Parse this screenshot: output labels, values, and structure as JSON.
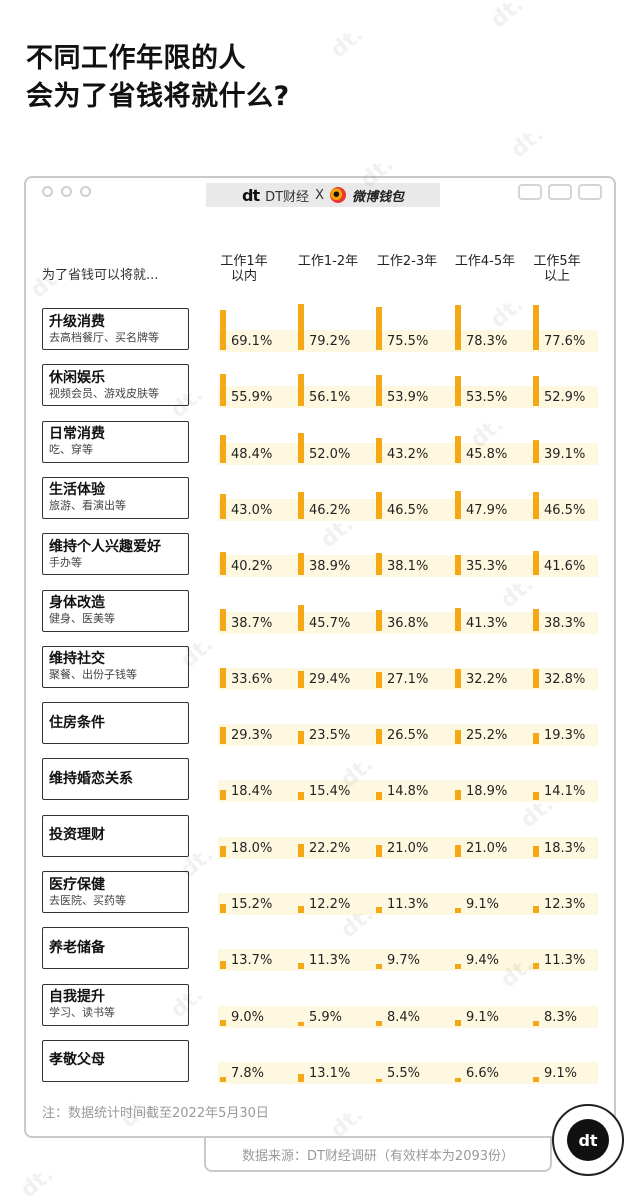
{
  "title_line1": "不同工作年限的人",
  "title_line2": "会为了省钱将就什么?",
  "brand": {
    "dt_mark": "dt",
    "dt_name": "DT财经",
    "cross": "X",
    "partner": "微博钱包"
  },
  "chart_data": {
    "type": "bar",
    "row_header": "为了省钱可以将就...",
    "series": [
      {
        "name": "工作1年以内",
        "values": [
          69.1,
          55.9,
          48.4,
          43.0,
          40.2,
          38.7,
          33.6,
          29.3,
          18.4,
          18.0,
          15.2,
          13.7,
          9.0,
          7.8
        ]
      },
      {
        "name": "工作1-2年",
        "values": [
          79.2,
          56.1,
          52.0,
          46.2,
          38.9,
          45.7,
          29.4,
          23.5,
          15.4,
          22.2,
          12.2,
          11.3,
          5.9,
          13.1
        ]
      },
      {
        "name": "工作2-3年",
        "values": [
          75.5,
          53.9,
          43.2,
          46.5,
          38.1,
          36.8,
          27.1,
          26.5,
          14.8,
          21.0,
          11.3,
          9.7,
          8.4,
          5.5
        ]
      },
      {
        "name": "工作4-5年",
        "values": [
          78.3,
          53.5,
          45.8,
          47.9,
          35.3,
          41.3,
          32.2,
          25.2,
          18.9,
          21.0,
          9.1,
          9.4,
          9.1,
          6.6
        ]
      },
      {
        "name": "工作5年以上",
        "values": [
          77.6,
          52.9,
          39.1,
          46.5,
          41.6,
          38.3,
          32.8,
          19.3,
          14.1,
          18.3,
          12.3,
          11.3,
          8.3,
          9.1
        ]
      }
    ],
    "column_headers": [
      [
        "工作1年",
        "以内"
      ],
      [
        "工作1-2年",
        ""
      ],
      [
        "工作2-3年",
        ""
      ],
      [
        "工作4-5年",
        ""
      ],
      [
        "工作5年",
        "以上"
      ]
    ],
    "categories": [
      {
        "name": "升级消费",
        "sub": "去高档餐厅、买名牌等"
      },
      {
        "name": "休闲娱乐",
        "sub": "视频会员、游戏皮肤等"
      },
      {
        "name": "日常消费",
        "sub": "吃、穿等"
      },
      {
        "name": "生活体验",
        "sub": "旅游、看演出等"
      },
      {
        "name": "维持个人兴趣爱好",
        "sub": "手办等"
      },
      {
        "name": "身体改造",
        "sub": "健身、医美等"
      },
      {
        "name": "维持社交",
        "sub": "聚餐、出份子钱等"
      },
      {
        "name": "住房条件",
        "sub": ""
      },
      {
        "name": "维持婚恋关系",
        "sub": ""
      },
      {
        "name": "投资理财",
        "sub": ""
      },
      {
        "name": "医疗保健",
        "sub": "去医院、买药等"
      },
      {
        "name": "养老储备",
        "sub": ""
      },
      {
        "name": "自我提升",
        "sub": "学习、读书等"
      },
      {
        "name": "孝敬父母",
        "sub": ""
      }
    ],
    "unit": "%",
    "bar_color": "#f5a816",
    "band_color": "#fff6d8"
  },
  "note": "注：数据统计时间截至2022年5月30日",
  "source": "数据来源：DT财经调研（有效样本为2093份）",
  "corner_logo": "dt"
}
